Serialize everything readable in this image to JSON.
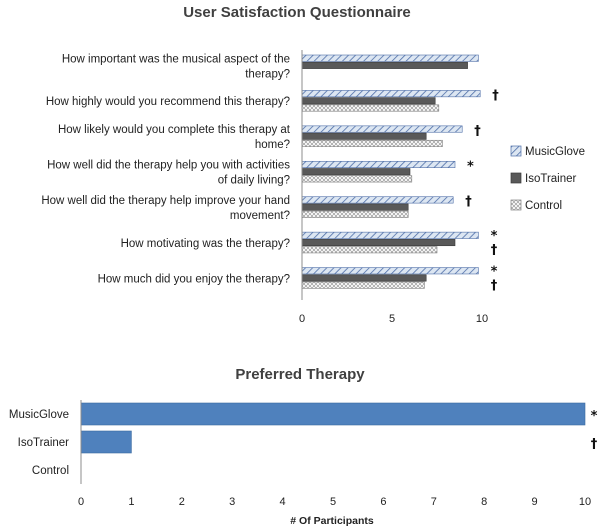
{
  "chart_data": [
    {
      "type": "bar",
      "orientation": "horizontal",
      "title": "User Satisfaction Questionnaire",
      "categories": [
        [
          "How important was the musical aspect of the",
          "therapy?"
        ],
        [
          "How highly would you recommend this therapy?"
        ],
        [
          "How likely would you complete this therapy at",
          "home?"
        ],
        [
          "How well did the therapy help you with activities",
          "of daily living?"
        ],
        [
          "How well did the therapy help improve your hand",
          "movement?"
        ],
        [
          "How motivating was the therapy?"
        ],
        [
          "How much did you enjoy the therapy?"
        ]
      ],
      "series": [
        {
          "name": "MusicGlove",
          "values": [
            9.8,
            9.9,
            8.9,
            8.5,
            8.4,
            9.8,
            9.8
          ]
        },
        {
          "name": "IsoTrainer",
          "values": [
            9.2,
            7.4,
            6.9,
            6.0,
            5.9,
            8.5,
            6.9
          ]
        },
        {
          "name": "Control",
          "values": [
            null,
            7.6,
            7.8,
            6.1,
            5.9,
            7.5,
            6.8
          ]
        }
      ],
      "significance": [
        [],
        [
          "†"
        ],
        [
          "†"
        ],
        [
          "*"
        ],
        [
          "†"
        ],
        [
          "*",
          "†"
        ],
        [
          "*",
          "†"
        ]
      ],
      "xticks": [
        "0",
        "5",
        "10"
      ],
      "xlim": [
        0,
        10
      ],
      "legend_position": "right"
    },
    {
      "type": "bar",
      "orientation": "horizontal",
      "title": "Preferred Therapy",
      "categories": [
        "MusicGlove",
        "IsoTrainer",
        "Control"
      ],
      "values": [
        10,
        1,
        0
      ],
      "significance": [
        "*",
        "†",
        ""
      ],
      "xlabel": "# Of Participants",
      "xticks": [
        "0",
        "1",
        "2",
        "3",
        "4",
        "5",
        "6",
        "7",
        "8",
        "9",
        "10"
      ],
      "xlim": [
        0,
        10
      ],
      "color": "#4f81bd"
    }
  ]
}
